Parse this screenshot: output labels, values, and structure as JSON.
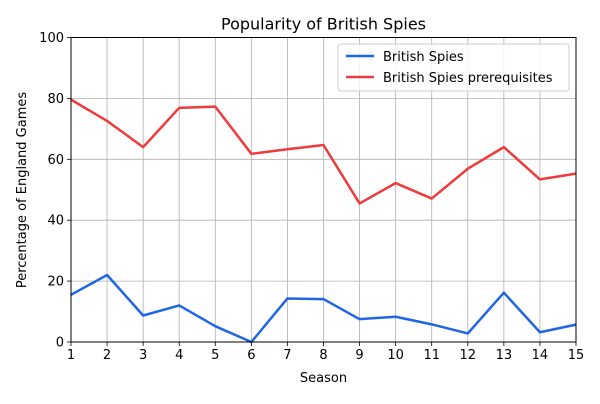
{
  "chart_data": {
    "type": "line",
    "title": "Popularity of British Spies",
    "xlabel": "Season",
    "ylabel": "Percentage of England Games",
    "x": [
      1,
      2,
      3,
      4,
      5,
      6,
      7,
      8,
      9,
      10,
      11,
      12,
      13,
      14,
      15
    ],
    "xlim": [
      1,
      15
    ],
    "ylim": [
      0,
      100
    ],
    "xticks": [
      1,
      2,
      3,
      4,
      5,
      6,
      7,
      8,
      9,
      10,
      11,
      12,
      13,
      14,
      15
    ],
    "yticks": [
      0,
      20,
      40,
      60,
      80,
      100
    ],
    "grid": true,
    "legend_position": "top-right",
    "series": [
      {
        "name": "British Spies",
        "color": "#1f66e5",
        "values": [
          15.5,
          22.0,
          8.7,
          12.0,
          5.2,
          0.0,
          14.3,
          14.1,
          7.5,
          8.3,
          5.8,
          2.8,
          16.2,
          3.2,
          5.7
        ]
      },
      {
        "name": "British Spies prerequisites",
        "color": "#ee3b3b",
        "values": [
          79.6,
          72.6,
          64.0,
          76.9,
          77.3,
          61.8,
          63.3,
          64.7,
          45.5,
          52.2,
          47.1,
          56.9,
          64.0,
          53.4,
          55.3
        ]
      }
    ]
  }
}
